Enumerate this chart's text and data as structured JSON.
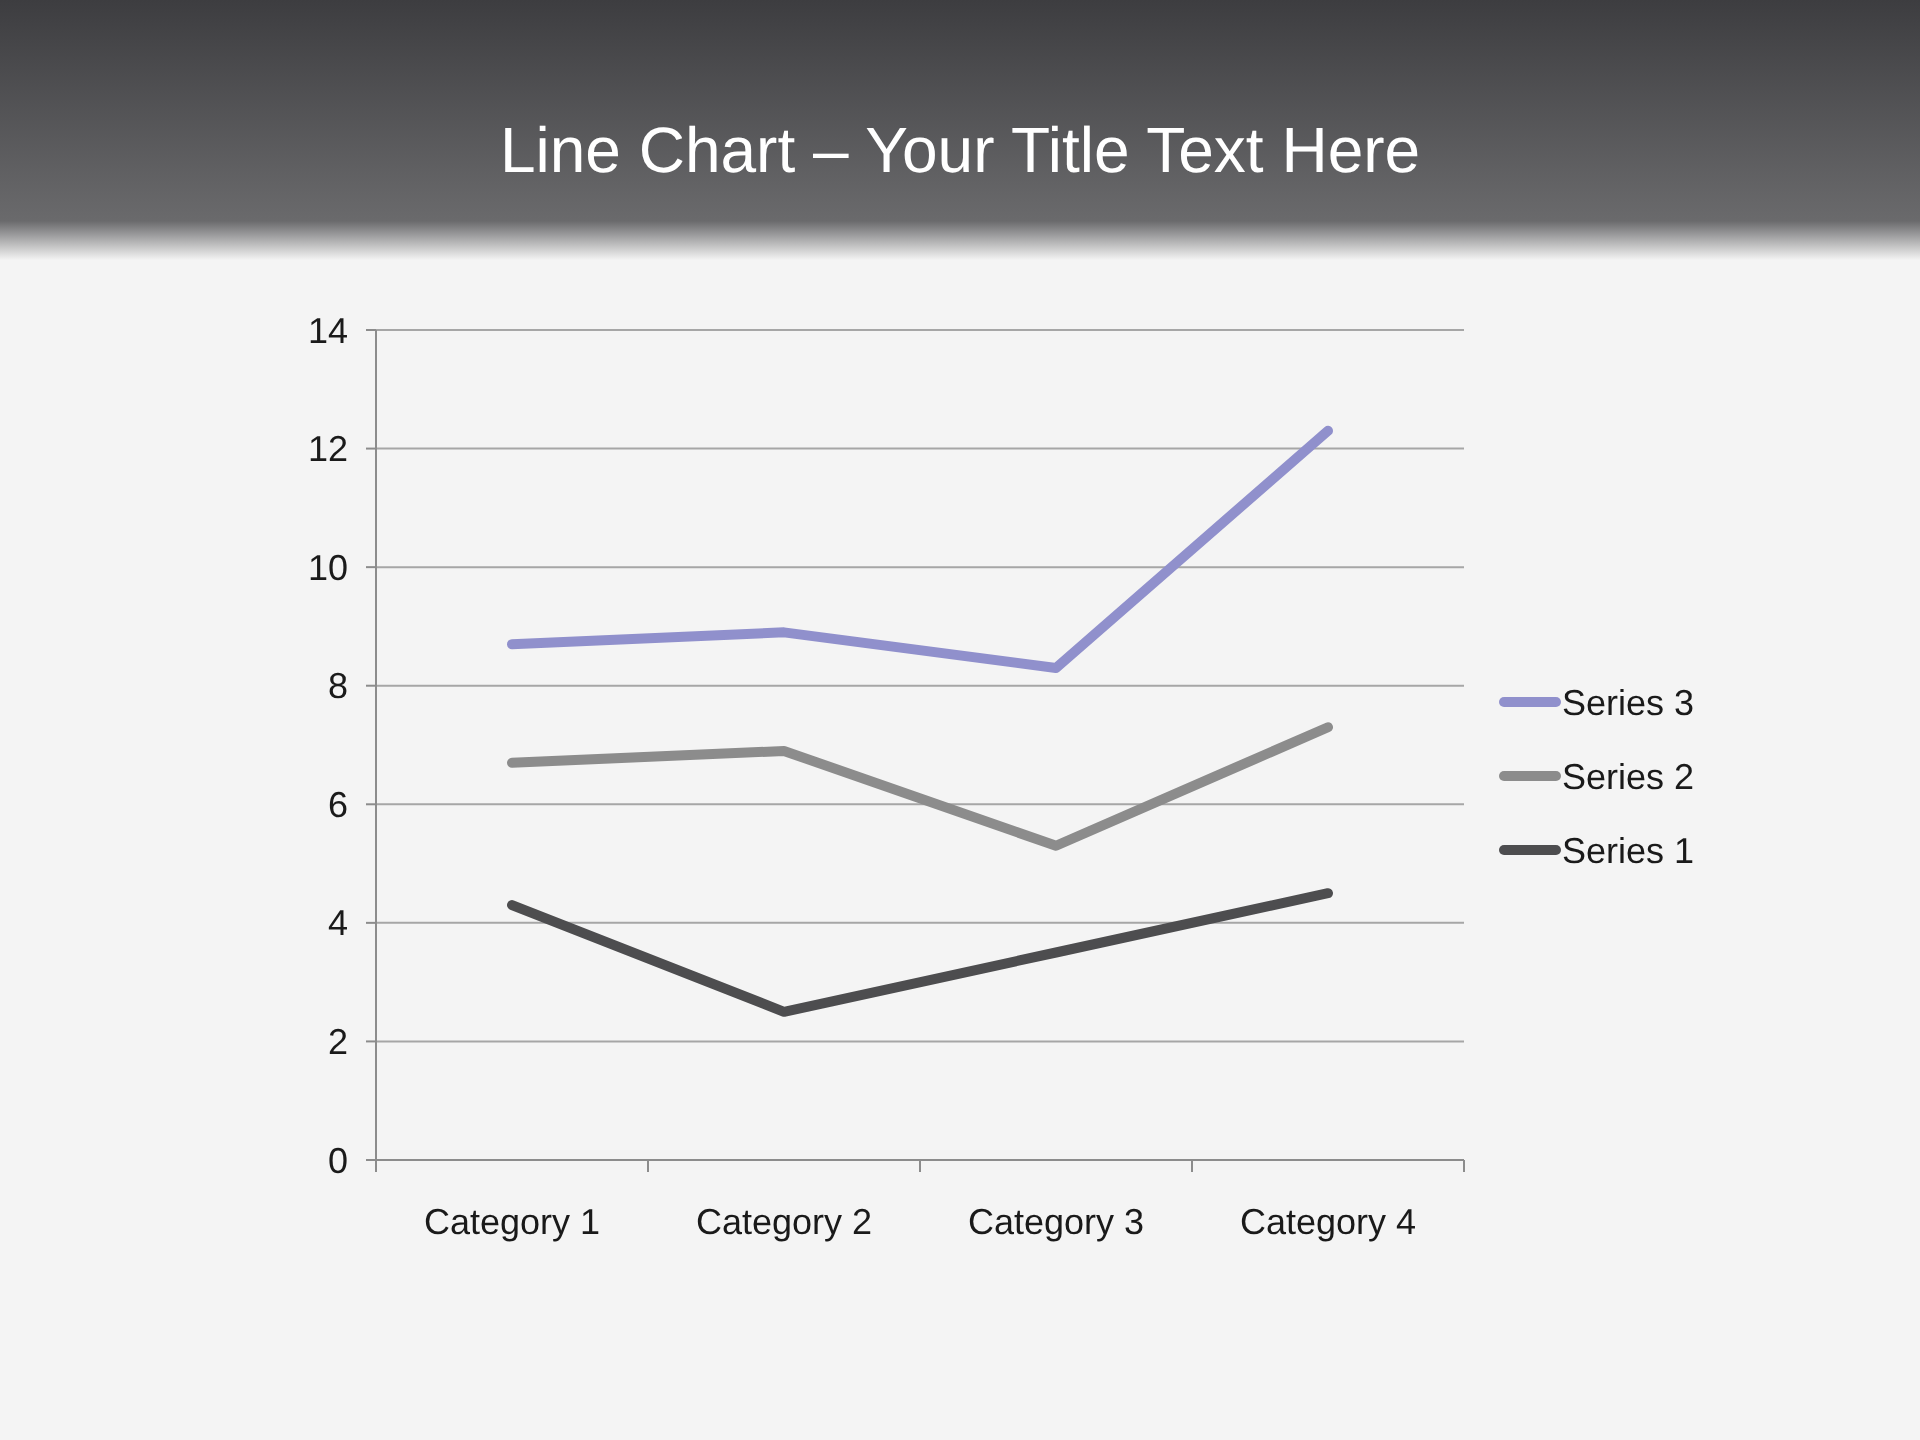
{
  "chart_data": {
    "type": "line",
    "title": "Line Chart – Your Title Text Here",
    "categories": [
      "Category 1",
      "Category 2",
      "Category 3",
      "Category 4"
    ],
    "series": [
      {
        "name": "Series 1",
        "color": "#4d4d4f",
        "values": [
          4.3,
          2.5,
          3.5,
          4.5
        ]
      },
      {
        "name": "Series 2",
        "color": "#8c8c8c",
        "values": [
          6.7,
          6.9,
          5.3,
          7.3
        ]
      },
      {
        "name": "Series 3",
        "color": "#9090cc",
        "values": [
          8.7,
          8.9,
          8.3,
          12.3
        ]
      }
    ],
    "ylim": [
      0,
      14
    ],
    "yticks": [
      0,
      2,
      4,
      6,
      8,
      10,
      12,
      14
    ],
    "grid": "y",
    "legend": "right",
    "marker": "none",
    "line_style": "solid"
  }
}
